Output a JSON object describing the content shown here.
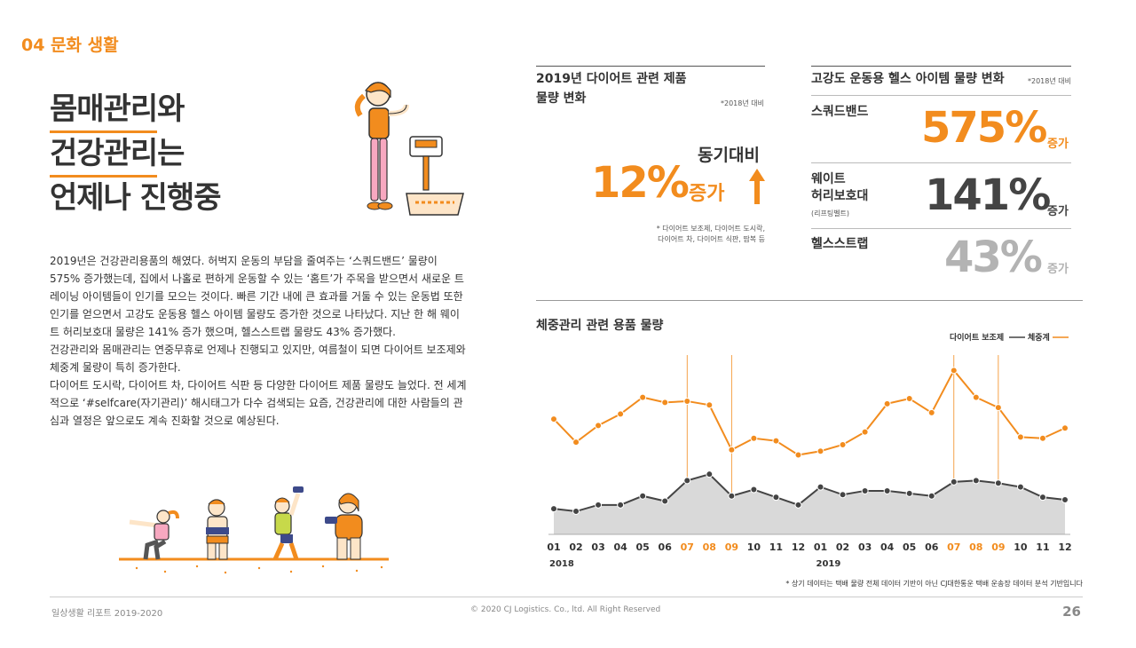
{
  "header": {
    "section_label": "04 문화 생활"
  },
  "headline": {
    "line1_hl": "몸매관리",
    "line1_rest": "와",
    "line2_hl": "건강관리",
    "line2_rest": "는",
    "line3": "언제나 진행중"
  },
  "body_paragraphs": [
    "2019년은 건강관리용품의 해였다. 허벅지 운동의 부담을 줄여주는 ‘스쿼드밴드’ 물량이 575% 증가했는데, 집에서 나홀로 편하게 운동할 수 있는 ‘홈트’가 주목을 받으면서 새로운 트레이닝 아이템들이 인기를 모으는 것이다. 빠른 기간 내에 큰 효과를 거둘 수 있는 운동법 또한 인기를 얻으면서 고강도 운동용 헬스 아이템 물량도 증가한 것으로 나타났다. 지난 한 해 웨이트 허리보호대 물량은 141% 증가 했으며, 헬스스트랩 물량도 43% 증가했다.",
    "건강관리와 몸매관리는 연중무휴로 언제나 진행되고 있지만, 여름철이 되면 다이어트 보조제와 체중계 물량이 특히 증가한다.",
    "다이어트 도시락, 다이어트 차, 다이어트 식판 등 다양한 다이어트 제품 물량도 늘었다. 전 세계적으로 ‘#selfcare(자기관리)’ 해시태그가 다수 검색되는 요즘, 건강관리에 대한 사람들의 관심과 열정은 앞으로도 계속 진화할 것으로 예상된다."
  ],
  "diet_panel": {
    "title_line1": "2019년 다이어트 관련 제품",
    "title_line2": "물량 변화",
    "basis": "*2018년 대비",
    "yoy_label": "동기대비",
    "value": "12%",
    "value_unit": "증가",
    "note_line1": "* 다이어트 보조제, 다이어트 도시락,",
    "note_line2": "다이어트 차, 다이어트 식판, 땀복 등"
  },
  "fitness_panel": {
    "title": "고강도 운동용 헬스 아이템 물량 변화",
    "basis": "*2018년 대비",
    "items": [
      {
        "label_line1": "스쿼드밴드",
        "label_line2": "",
        "sub": "",
        "value": "575%",
        "unit": "증가",
        "color": "#f28c1e"
      },
      {
        "label_line1": "웨이트",
        "label_line2": "허리보호대",
        "sub": "(리프팅벨트)",
        "value": "141%",
        "unit": "증가",
        "color": "#444444"
      },
      {
        "label_line1": "헬스스트랩",
        "label_line2": "",
        "sub": "",
        "value": "43%",
        "unit": "증가",
        "color": "#b3b3b3"
      }
    ]
  },
  "weight_chart": {
    "title": "체중관리 관련 용품 물량",
    "footnote": "* 상기 데이터는 택배 물량 전체 데이터 기반이 아닌 CJ대한통운 택배 운송장 데이터 분석 기반입니다"
  },
  "chart_data": {
    "type": "line",
    "title": "체중관리 관련 용품 물량",
    "x": [
      "01",
      "02",
      "03",
      "04",
      "05",
      "06",
      "07",
      "08",
      "09",
      "10",
      "11",
      "12",
      "01",
      "02",
      "03",
      "04",
      "05",
      "06",
      "07",
      "08",
      "09",
      "10",
      "11",
      "12"
    ],
    "year_labels": [
      {
        "label": "2018",
        "at_index": 0
      },
      {
        "label": "2019",
        "at_index": 12
      }
    ],
    "highlight_months": [
      "07",
      "08",
      "09"
    ],
    "legend_position": "top-right",
    "series": [
      {
        "name": "다이어트 보조제",
        "color": "#444444",
        "fill": "#d9d9d9",
        "values": [
          20,
          18,
          23,
          23,
          30,
          26,
          42,
          47,
          30,
          35,
          29,
          23,
          37,
          31,
          34,
          34,
          32,
          30,
          41,
          42,
          40,
          37,
          29,
          27
        ]
      },
      {
        "name": "체중계",
        "color": "#f28c1e",
        "values": [
          90,
          72,
          85,
          94,
          107,
          103,
          104,
          101,
          66,
          75,
          73,
          62,
          65,
          70,
          80,
          102,
          106,
          95,
          128,
          107,
          99,
          76,
          75,
          83
        ]
      }
    ],
    "ylim": [
      0,
      140
    ],
    "grid": false
  },
  "footer": {
    "left": "일상생활 리포트 2019-2020",
    "center": "© 2020 CJ Logistics. Co., ltd. All Right Reserved",
    "page": "26"
  },
  "colors": {
    "accent": "#f28c1e",
    "dark": "#444444",
    "light": "#b3b3b3"
  }
}
